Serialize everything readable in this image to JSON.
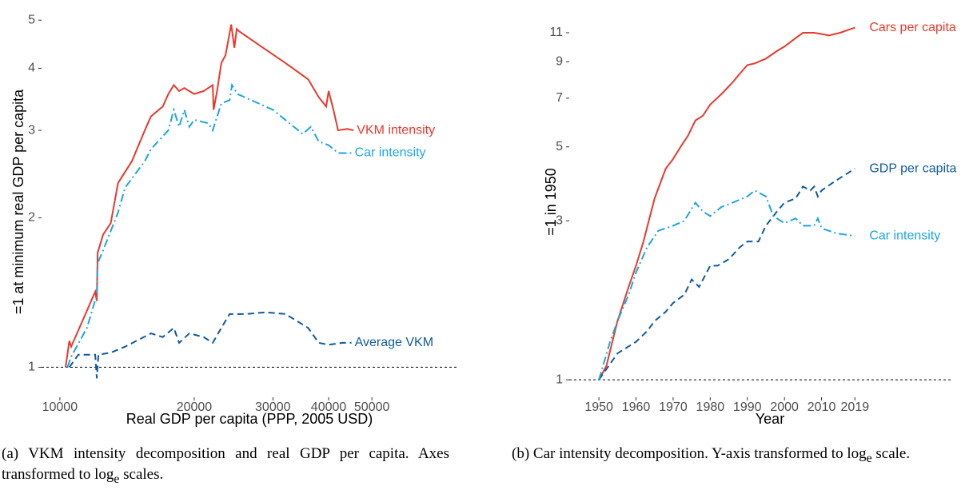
{
  "chart_data": [
    {
      "type": "line",
      "x_label": "Real GDP per capita (PPP, 2005 USD)",
      "y_label": "=1 at minimum real GDP per capita",
      "x_log": true,
      "y_log": true,
      "xlim": [
        9100,
        78000
      ],
      "ylim": [
        0.87,
        5.33
      ],
      "xticks": [
        10000,
        20000,
        30000,
        40000,
        50000
      ],
      "yticks": [
        1,
        2,
        3,
        4,
        5
      ],
      "reference_line": 1,
      "series": [
        {
          "name": "VKM intensity",
          "color": "#e8392c",
          "dash": "solid",
          "x": [
            10300,
            10500,
            10600,
            11500,
            12000,
            12100,
            12150,
            12500,
            13000,
            13500,
            14500,
            15500,
            16000,
            17000,
            17500,
            18000,
            18500,
            19000,
            20000,
            21000,
            22000,
            22100,
            22500,
            23000,
            23500,
            24200,
            24600,
            24900,
            25200,
            28000,
            32000,
            36000,
            38000,
            39500,
            40000,
            41000,
            42000,
            44000,
            45500
          ],
          "values": [
            1.0,
            1.13,
            1.1,
            1.3,
            1.42,
            1.36,
            1.7,
            1.85,
            1.95,
            2.35,
            2.6,
            3.0,
            3.2,
            3.35,
            3.55,
            3.7,
            3.6,
            3.65,
            3.55,
            3.6,
            3.7,
            3.3,
            3.6,
            4.1,
            4.25,
            4.9,
            4.4,
            4.8,
            4.75,
            4.45,
            4.1,
            3.8,
            3.5,
            3.35,
            3.6,
            3.3,
            3.0,
            3.02,
            3.0
          ]
        },
        {
          "name": "Car intensity",
          "color": "#1aa7dc",
          "dash": "dashdot",
          "x": [
            10400,
            10600,
            11500,
            12100,
            12150,
            12500,
            13500,
            14000,
            15500,
            16000,
            17500,
            18000,
            18500,
            19000,
            19500,
            20000,
            21500,
            22000,
            23000,
            24000,
            24300,
            25000,
            30000,
            35000,
            36500,
            38000,
            40000,
            42000,
            45000
          ],
          "values": [
            1.0,
            1.05,
            1.2,
            1.4,
            1.62,
            1.72,
            2.05,
            2.3,
            2.6,
            2.75,
            3.0,
            3.3,
            3.05,
            3.3,
            3.05,
            3.15,
            3.1,
            3.0,
            3.4,
            3.45,
            3.7,
            3.55,
            3.3,
            2.95,
            3.05,
            2.85,
            2.8,
            2.7,
            2.7
          ]
        },
        {
          "name": "Average VKM",
          "color": "#0f5a9c",
          "dash": "dashed",
          "x": [
            10500,
            11000,
            12000,
            12100,
            12200,
            13000,
            14000,
            16000,
            17000,
            18000,
            18500,
            19500,
            21000,
            22000,
            23000,
            24000,
            26000,
            29000,
            32000,
            36000,
            38000,
            40000,
            43000,
            45000
          ],
          "values": [
            1.0,
            1.06,
            1.06,
            0.95,
            1.06,
            1.07,
            1.1,
            1.17,
            1.15,
            1.2,
            1.12,
            1.17,
            1.15,
            1.12,
            1.2,
            1.28,
            1.28,
            1.29,
            1.28,
            1.2,
            1.12,
            1.11,
            1.12,
            1.12
          ]
        }
      ],
      "caption": {
        "before": "(a) VKM intensity decomposition and real GDP per capita. Axes transformed to log",
        "sub": "e",
        "after": " scales."
      }
    },
    {
      "type": "line",
      "x_label": "Year",
      "y_label": "=1 in 1950",
      "x_log": false,
      "y_log": true,
      "xlim": [
        1942,
        2045
      ],
      "ylim": [
        0.886,
        13.2
      ],
      "xticks": [
        1950,
        1960,
        1970,
        1980,
        1990,
        2000,
        2010,
        2019
      ],
      "yticks": [
        1,
        3,
        5,
        7,
        9,
        11
      ],
      "reference_line": 1,
      "series": [
        {
          "name": "Cars per capita",
          "color": "#e8392c",
          "dash": "solid",
          "x": [
            1950,
            1952,
            1955,
            1958,
            1960,
            1962,
            1965,
            1968,
            1970,
            1972,
            1974,
            1976,
            1978,
            1980,
            1983,
            1986,
            1988,
            1990,
            1992,
            1995,
            1998,
            2000,
            2003,
            2005,
            2008,
            2010,
            2012,
            2015,
            2017,
            2019
          ],
          "values": [
            1.0,
            1.1,
            1.5,
            1.9,
            2.2,
            2.6,
            3.5,
            4.3,
            4.6,
            5.0,
            5.4,
            6.0,
            6.2,
            6.7,
            7.2,
            7.8,
            8.3,
            8.8,
            8.9,
            9.2,
            9.7,
            10.0,
            10.6,
            11.0,
            11.0,
            10.9,
            10.8,
            11.0,
            11.2,
            11.4
          ]
        },
        {
          "name": "GDP per capita",
          "color": "#0f5a9c",
          "dash": "dashed",
          "x": [
            1950,
            1955,
            1960,
            1963,
            1965,
            1968,
            1970,
            1973,
            1975,
            1977,
            1980,
            1982,
            1985,
            1988,
            1990,
            1993,
            1995,
            1998,
            2000,
            2003,
            2005,
            2007,
            2008,
            2009,
            2010,
            2013,
            2016,
            2019
          ],
          "values": [
            1.0,
            1.2,
            1.3,
            1.4,
            1.5,
            1.6,
            1.7,
            1.8,
            2.0,
            1.9,
            2.2,
            2.2,
            2.3,
            2.5,
            2.6,
            2.6,
            2.9,
            3.2,
            3.4,
            3.5,
            3.8,
            3.7,
            3.8,
            3.55,
            3.7,
            3.9,
            4.1,
            4.3
          ]
        },
        {
          "name": "Car intensity",
          "color": "#1aa7dc",
          "dash": "dashdot",
          "x": [
            1950,
            1953,
            1955,
            1958,
            1960,
            1963,
            1966,
            1970,
            1973,
            1976,
            1978,
            1980,
            1983,
            1986,
            1990,
            1992,
            1995,
            1997,
            2000,
            2003,
            2005,
            2008,
            2009,
            2010,
            2014,
            2019
          ],
          "values": [
            1.0,
            1.3,
            1.5,
            1.8,
            2.1,
            2.5,
            2.8,
            2.9,
            3.0,
            3.4,
            3.2,
            3.1,
            3.3,
            3.4,
            3.55,
            3.7,
            3.55,
            3.1,
            2.95,
            3.05,
            2.9,
            2.9,
            3.05,
            2.85,
            2.75,
            2.7
          ]
        }
      ],
      "caption": {
        "before": "(b) Car intensity decomposition. Y-axis transformed to log",
        "sub": "e",
        "after": " scale."
      }
    }
  ]
}
